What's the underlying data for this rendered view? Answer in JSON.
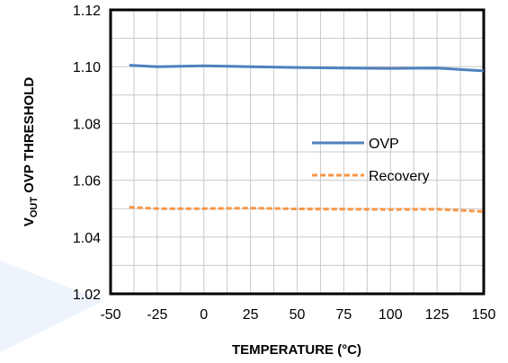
{
  "chart_data": {
    "type": "line",
    "title": "",
    "xlabel": "TEMPERATURE  (°C)",
    "ylabel_parts": {
      "main": "V",
      "sub": "OUT",
      "rest": " OVP THRESHOLD"
    },
    "xlim": [
      -50,
      150
    ],
    "ylim": [
      1.02,
      1.12
    ],
    "xticks": [
      "-50",
      "-25",
      "0",
      "25",
      "50",
      "75",
      "100",
      "125",
      "150"
    ],
    "yticks": [
      "1.02",
      "1.04",
      "1.06",
      "1.08",
      "1.10",
      "1.12"
    ],
    "grid": true,
    "legend_position": "right",
    "series": [
      {
        "name": "OVP",
        "color": "#4f81bd",
        "style": "solid",
        "x": [
          -40,
          -25,
          0,
          25,
          50,
          75,
          100,
          125,
          150
        ],
        "y": [
          1.1005,
          1.1,
          1.1003,
          1.1,
          1.0997,
          1.0995,
          1.0994,
          1.0995,
          1.0985
        ]
      },
      {
        "name": "Recovery",
        "color": "#f79646",
        "style": "dashed",
        "x": [
          -40,
          -25,
          0,
          25,
          50,
          75,
          100,
          125,
          150
        ],
        "y": [
          1.0505,
          1.05,
          1.05,
          1.0502,
          1.0499,
          1.0498,
          1.0497,
          1.0498,
          1.049
        ]
      }
    ]
  }
}
